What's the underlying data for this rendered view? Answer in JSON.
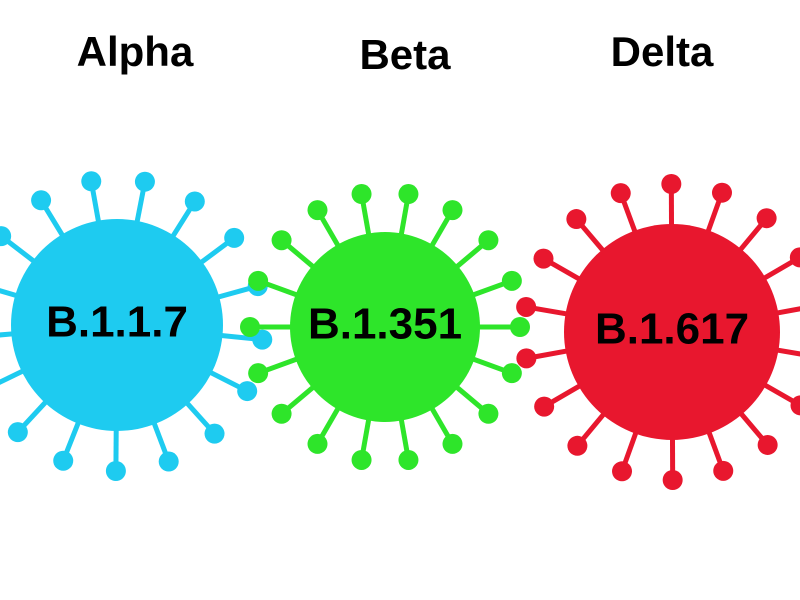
{
  "variants": [
    {
      "name": "Alpha",
      "lineage": "B.1.1.7"
    },
    {
      "name": "Beta",
      "lineage": "B.1.351"
    },
    {
      "name": "Delta",
      "lineage": "B.1.617"
    }
  ]
}
